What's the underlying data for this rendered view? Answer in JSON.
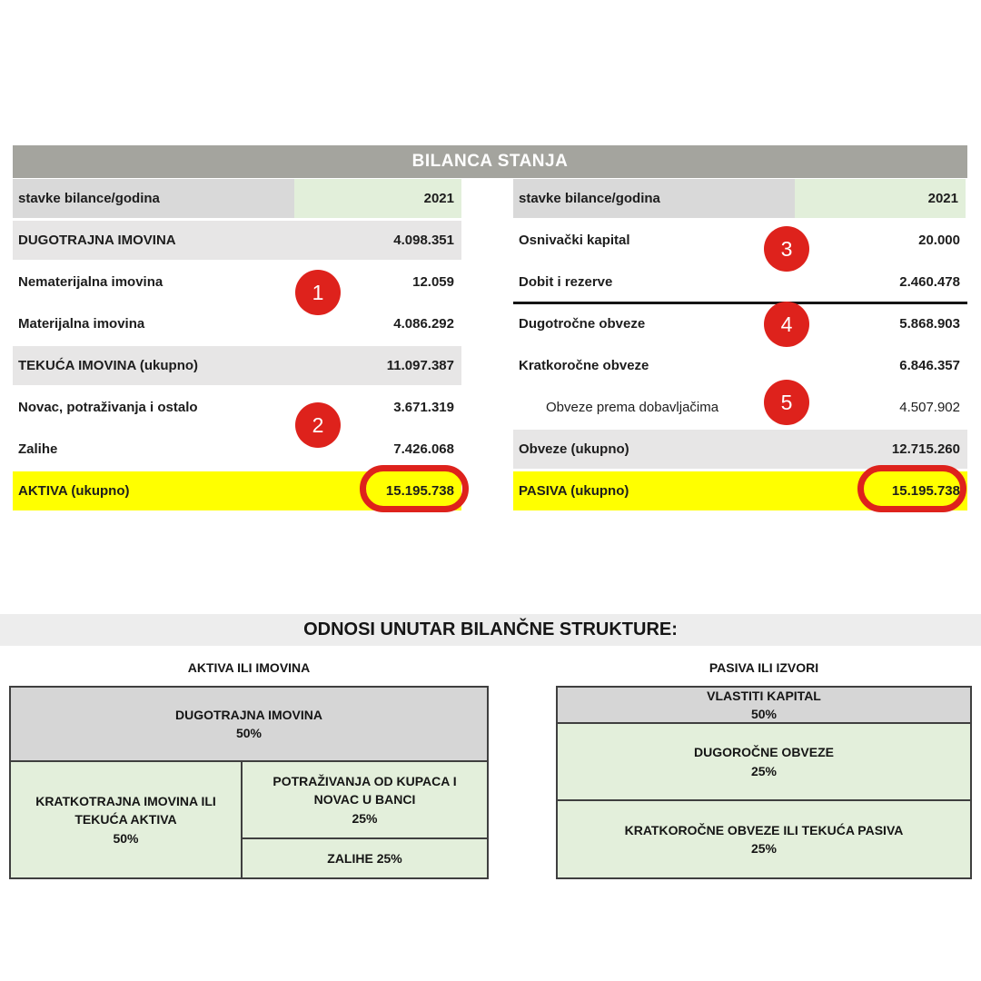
{
  "balance": {
    "title": "BILANCA STANJA",
    "left": {
      "header_label": "stavke bilance/godina",
      "header_year": "2021",
      "rows": [
        {
          "label": "DUGOTRAJNA IMOVINA",
          "value": "4.098.351"
        },
        {
          "label": "Nematerijalna imovina",
          "value": "12.059"
        },
        {
          "label": "Materijalna imovina",
          "value": "4.086.292"
        },
        {
          "label": "TEKUĆA IMOVINA (ukupno)",
          "value": "11.097.387"
        },
        {
          "label": "Novac, potraživanja i ostalo",
          "value": "3.671.319"
        },
        {
          "label": "Zalihe",
          "value": "7.426.068"
        },
        {
          "label": "AKTIVA (ukupno)",
          "value": "15.195.738"
        }
      ]
    },
    "right": {
      "header_label": "stavke bilance/godina",
      "header_year": "2021",
      "rows": [
        {
          "label": "Osnivački kapital",
          "value": "20.000"
        },
        {
          "label": "Dobit i rezerve",
          "value": "2.460.478"
        },
        {
          "label": "Dugotročne obveze",
          "value": "5.868.903"
        },
        {
          "label": "Kratkoročne obveze",
          "value": "6.846.357"
        },
        {
          "label": "Obveze prema dobavljačima",
          "value": "4.507.902"
        },
        {
          "label": "Obveze (ukupno)",
          "value": "12.715.260"
        },
        {
          "label": "PASIVA (ukupno)",
          "value": "15.195.738"
        }
      ]
    },
    "annotations": [
      "1",
      "2",
      "3",
      "4",
      "5"
    ]
  },
  "structure": {
    "title": "ODNOSI UNUTAR BILANČNE STRUKTURE:",
    "left": {
      "heading": "AKTIVA ILI IMOVINA",
      "blocks": {
        "dugotrajna": {
          "label": "DUGOTRAJNA IMOVINA",
          "pct": "50%"
        },
        "kratkotrajna": {
          "label": "KRATKOTRAJNA IMOVINA ILI TEKUĆA AKTIVA",
          "pct": "50%"
        },
        "potrazivanja": {
          "label": "POTRAŽIVANJA OD KUPACA I NOVAC U BANCI",
          "pct": "25%"
        },
        "zalihe": {
          "label": "ZALIHE 25%",
          "pct": ""
        }
      }
    },
    "right": {
      "heading": "PASIVA ILI IZVORI",
      "blocks": {
        "vlastiti": {
          "label": "VLASTITI KAPITAL",
          "pct": "50%"
        },
        "dugorocne": {
          "label": "DUGOROČNE OBVEZE",
          "pct": "25%"
        },
        "kratkorocne": {
          "label": "KRATKOROČNE OBVEZE ILI TEKUĆA PASIVA",
          "pct": "25%"
        }
      }
    }
  },
  "colors": {
    "accent_red": "#de221c",
    "highlight_yellow": "#ffff00",
    "header_gray": "#d9d9d9",
    "year_green": "#e2efda",
    "row_gray": "#e7e6e6",
    "title_bar_gray": "#a4a49e",
    "block_gray": "#d6d6d6",
    "block_green": "#e3efdb"
  }
}
